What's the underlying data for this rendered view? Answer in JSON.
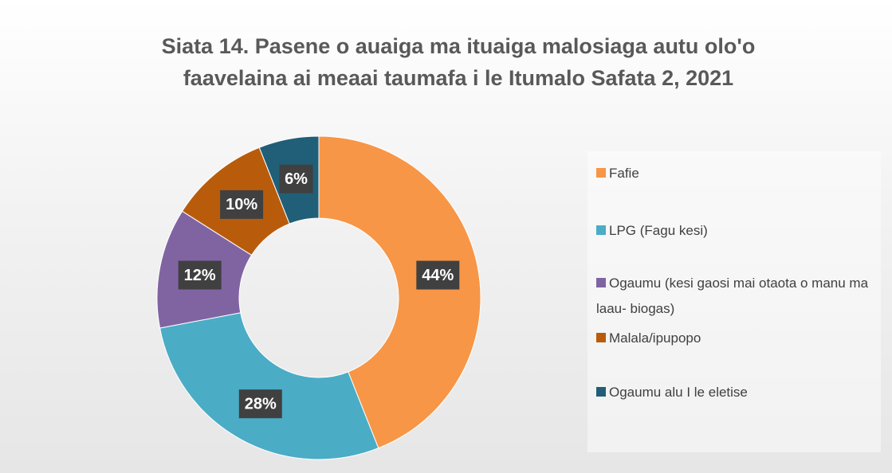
{
  "chart_data": {
    "type": "donut",
    "title": "Siata 14. Pasene o auaiga ma ituaiga malosiaga autu olo'o faavelaina ai meaai taumafa i le Itumalo Safata 2, 2021",
    "categories": [
      "Fafie",
      "LPG (Fagu kesi)",
      "Ogaumu (kesi gaosi mai otaota o manu ma laau- biogas)",
      "Malala/ipupopo",
      "Ogaumu alu I le eletise"
    ],
    "values": [
      44,
      28,
      12,
      10,
      6
    ],
    "value_labels": [
      "44%",
      "28%",
      "12%",
      "10%",
      "6%"
    ],
    "colors": [
      "#f79646",
      "#4bacc6",
      "#8064a2",
      "#b85c0c",
      "#215f78"
    ],
    "legend": "right"
  }
}
